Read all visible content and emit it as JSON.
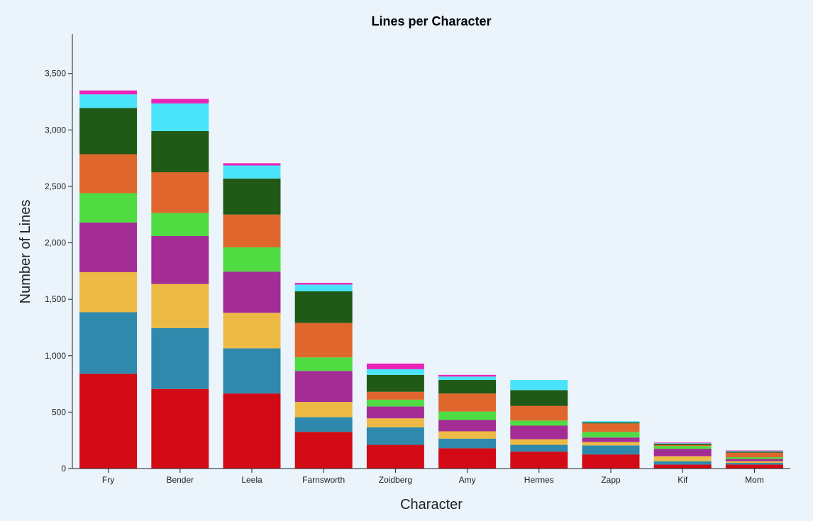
{
  "chart_data": {
    "type": "bar",
    "stacked": true,
    "title": "Lines per Character",
    "xlabel": "Character",
    "ylabel": "Number of Lines",
    "ylim": [
      0,
      3850
    ],
    "yticks": [
      0,
      500,
      1000,
      1500,
      2000,
      2500,
      3000,
      3500
    ],
    "ytick_labels": [
      "0",
      "500",
      "1,000",
      "1,500",
      "2,000",
      "2,500",
      "3,000",
      "3,500"
    ],
    "categories": [
      "Fry",
      "Bender",
      "Leela",
      "Farnsworth",
      "Zoidberg",
      "Amy",
      "Hermes",
      "Zapp",
      "Kif",
      "Mom"
    ],
    "series": [
      {
        "color": "#d10a16",
        "values": [
          840,
          705,
          665,
          325,
          210,
          180,
          150,
          125,
          35,
          35
        ]
      },
      {
        "color": "#2e89ad",
        "values": [
          545,
          540,
          400,
          130,
          155,
          85,
          60,
          80,
          30,
          15
        ]
      },
      {
        "color": "#edba45",
        "values": [
          355,
          390,
          315,
          135,
          80,
          65,
          50,
          30,
          45,
          15
        ]
      },
      {
        "color": "#a32c95",
        "values": [
          440,
          425,
          365,
          275,
          105,
          100,
          120,
          40,
          65,
          20
        ]
      },
      {
        "color": "#4fdb42",
        "values": [
          260,
          205,
          215,
          120,
          60,
          75,
          45,
          50,
          25,
          15
        ]
      },
      {
        "color": "#df672d",
        "values": [
          345,
          360,
          290,
          305,
          70,
          160,
          130,
          75,
          10,
          40
        ]
      },
      {
        "color": "#215916",
        "values": [
          410,
          365,
          320,
          280,
          150,
          120,
          140,
          10,
          10,
          10
        ]
      },
      {
        "color": "#49e4fb",
        "values": [
          120,
          245,
          115,
          60,
          50,
          30,
          90,
          10,
          5,
          5
        ]
      },
      {
        "color": "#eb24b8",
        "values": [
          35,
          40,
          20,
          15,
          50,
          15,
          0,
          0,
          5,
          5
        ]
      }
    ]
  }
}
